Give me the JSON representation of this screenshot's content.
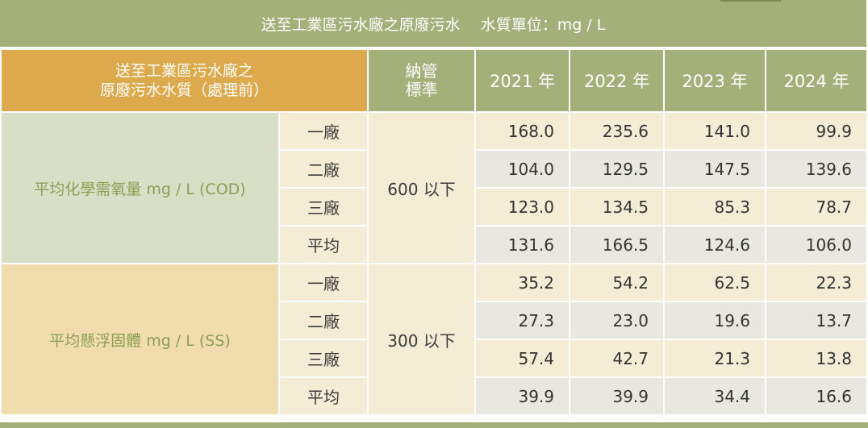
{
  "title": "送至工業區污水廠之原廢污水　 水質單位：mg / L",
  "header": {
    "corner_line1": "送至工業區污水廠之",
    "corner_line2": "原廢污水水質（處理前）",
    "standard_line1": "納管",
    "standard_line2": "標準",
    "years": [
      "2021 年",
      "2022 年",
      "2023 年",
      "2024 年"
    ]
  },
  "groups": [
    {
      "label": "平均化學需氧量 mg / L (COD)",
      "standard": "600 以下",
      "rows": [
        {
          "plant": "一廠",
          "values": [
            "168.0",
            "235.6",
            "141.0",
            "99.9"
          ]
        },
        {
          "plant": "二廠",
          "values": [
            "104.0",
            "129.5",
            "147.5",
            "139.6"
          ]
        },
        {
          "plant": "三廠",
          "values": [
            "123.0",
            "134.5",
            "85.3",
            "78.7"
          ]
        },
        {
          "plant": "平均",
          "values": [
            "131.6",
            "166.5",
            "124.6",
            "106.0"
          ]
        }
      ]
    },
    {
      "label": "平均懸浮固體 mg / L (SS)",
      "standard": "300 以下",
      "rows": [
        {
          "plant": "一廠",
          "values": [
            "35.2",
            "54.2",
            "62.5",
            "22.3"
          ]
        },
        {
          "plant": "二廠",
          "values": [
            "27.3",
            "23.0",
            "19.6",
            "13.7"
          ]
        },
        {
          "plant": "三廠",
          "values": [
            "57.4",
            "42.7",
            "21.3",
            "13.8"
          ]
        },
        {
          "plant": "平均",
          "values": [
            "39.9",
            "39.9",
            "34.4",
            "16.6"
          ]
        }
      ]
    }
  ],
  "colors": {
    "header_green": "#a4b07a",
    "corner_gold": "#dcaa4c",
    "cod_band": "#d9dec6",
    "ss_band": "#f1dcae",
    "cell_light": "#f5ecd6",
    "cell_grey": "#e8e8e0",
    "category_text": "#8c9f56"
  }
}
